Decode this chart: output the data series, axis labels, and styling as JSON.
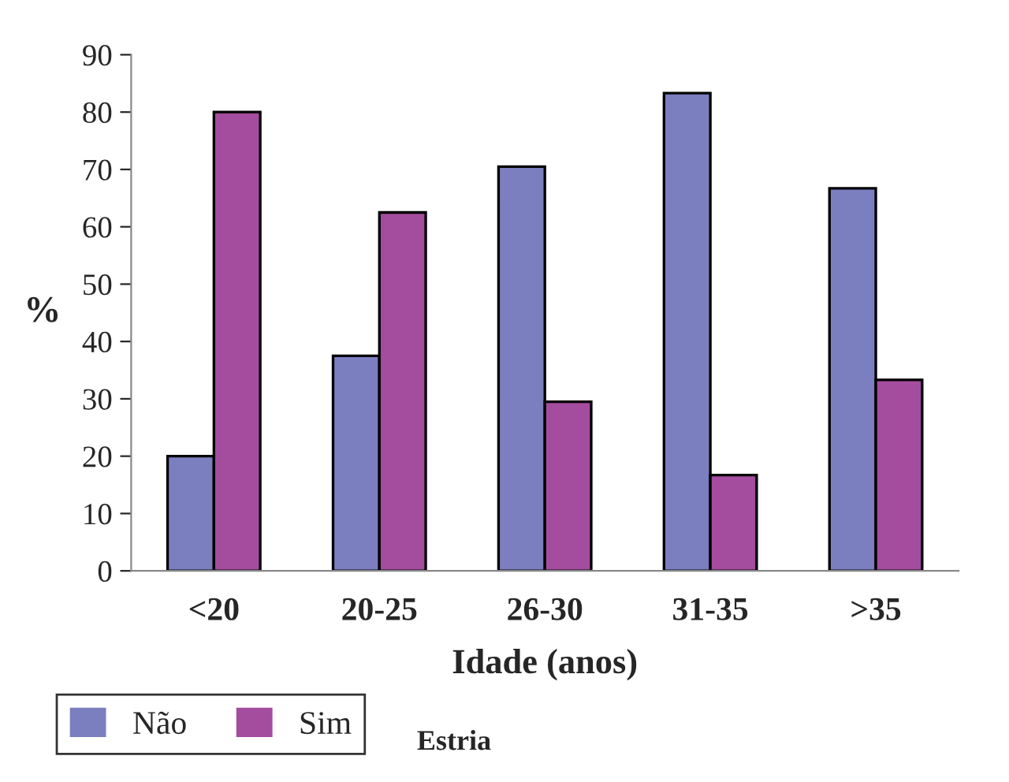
{
  "chart_data": {
    "type": "bar",
    "xlabel": "Idade (anos)",
    "ylabel": "%",
    "legend_title": "Estria",
    "categories": [
      "<20",
      "20-25",
      "26-30",
      "31-35",
      ">35"
    ],
    "series": [
      {
        "name": "Não",
        "color": "#7b7fc0",
        "values": [
          20,
          37.5,
          70.5,
          83.3,
          66.7
        ]
      },
      {
        "name": "Sim",
        "color": "#a44c9e",
        "values": [
          80,
          62.5,
          29.5,
          16.7,
          33.3
        ]
      }
    ],
    "ylim": [
      0,
      90
    ],
    "yticks": [
      0,
      10,
      20,
      30,
      40,
      50,
      60,
      70,
      80,
      90
    ],
    "grid": false,
    "legend": "bottom left"
  }
}
